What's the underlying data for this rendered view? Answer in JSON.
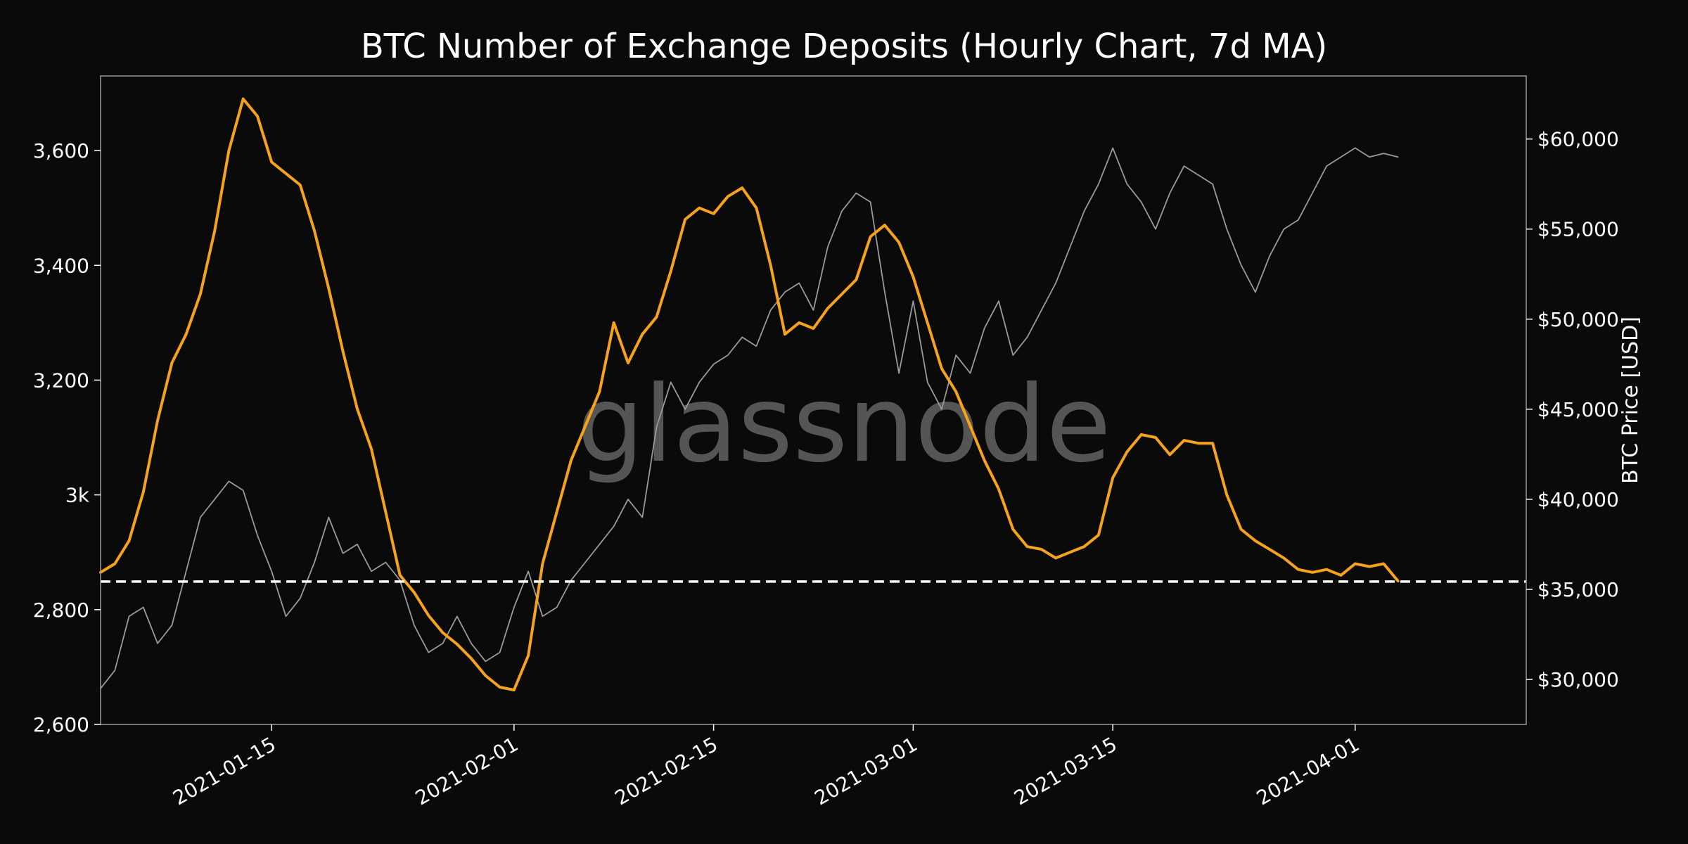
{
  "chart_data": {
    "type": "line",
    "title": "BTC Number of Exchange Deposits (Hourly Chart, 7d MA)",
    "watermark": "glassnode",
    "x_range": [
      "2021-01-03",
      "2021-04-13"
    ],
    "x_ticks": [
      "2021-01-15",
      "2021-02-01",
      "2021-02-15",
      "2021-03-01",
      "2021-03-15",
      "2021-04-01"
    ],
    "left_axis": {
      "range": [
        2600,
        3730
      ],
      "ticks": [
        {
          "value": 2600,
          "label": "2,600"
        },
        {
          "value": 2800,
          "label": "2,800"
        },
        {
          "value": 3000,
          "label": "3k"
        },
        {
          "value": 3200,
          "label": "3,200"
        },
        {
          "value": 3400,
          "label": "3,400"
        },
        {
          "value": 3600,
          "label": "3,600"
        }
      ]
    },
    "right_axis": {
      "label": "BTC Price [USD]",
      "range": [
        27500,
        63500
      ],
      "ticks": [
        {
          "value": 30000,
          "label": "$30,000"
        },
        {
          "value": 35000,
          "label": "$35,000"
        },
        {
          "value": 40000,
          "label": "$40,000"
        },
        {
          "value": 45000,
          "label": "$45,000"
        },
        {
          "value": 50000,
          "label": "$50,000"
        },
        {
          "value": 55000,
          "label": "$55,000"
        },
        {
          "value": 60000,
          "label": "$60,000"
        }
      ]
    },
    "reference_line": {
      "value": 2849,
      "style": "dashed",
      "color": "#ffffff"
    },
    "grid": false,
    "series": [
      {
        "axis": "left",
        "color": "#f7a21b",
        "points": [
          [
            "2021-01-03",
            2865
          ],
          [
            "2021-01-04",
            2880
          ],
          [
            "2021-01-05",
            2920
          ],
          [
            "2021-01-06",
            3005
          ],
          [
            "2021-01-07",
            3130
          ],
          [
            "2021-01-08",
            3230
          ],
          [
            "2021-01-09",
            3280
          ],
          [
            "2021-01-10",
            3350
          ],
          [
            "2021-01-11",
            3460
          ],
          [
            "2021-01-12",
            3600
          ],
          [
            "2021-01-13",
            3690
          ],
          [
            "2021-01-14",
            3660
          ],
          [
            "2021-01-15",
            3580
          ],
          [
            "2021-01-16",
            3560
          ],
          [
            "2021-01-17",
            3540
          ],
          [
            "2021-01-18",
            3460
          ],
          [
            "2021-01-19",
            3360
          ],
          [
            "2021-01-20",
            3250
          ],
          [
            "2021-01-21",
            3150
          ],
          [
            "2021-01-22",
            3080
          ],
          [
            "2021-01-23",
            2970
          ],
          [
            "2021-01-24",
            2860
          ],
          [
            "2021-01-25",
            2830
          ],
          [
            "2021-01-26",
            2790
          ],
          [
            "2021-01-27",
            2760
          ],
          [
            "2021-01-28",
            2740
          ],
          [
            "2021-01-29",
            2715
          ],
          [
            "2021-01-30",
            2685
          ],
          [
            "2021-01-31",
            2665
          ],
          [
            "2021-02-01",
            2660
          ],
          [
            "2021-02-02",
            2720
          ],
          [
            "2021-02-03",
            2880
          ],
          [
            "2021-02-04",
            2970
          ],
          [
            "2021-02-05",
            3060
          ],
          [
            "2021-02-06",
            3120
          ],
          [
            "2021-02-07",
            3180
          ],
          [
            "2021-02-08",
            3300
          ],
          [
            "2021-02-09",
            3230
          ],
          [
            "2021-02-10",
            3280
          ],
          [
            "2021-02-11",
            3310
          ],
          [
            "2021-02-12",
            3390
          ],
          [
            "2021-02-13",
            3480
          ],
          [
            "2021-02-14",
            3500
          ],
          [
            "2021-02-15",
            3490
          ],
          [
            "2021-02-16",
            3520
          ],
          [
            "2021-02-17",
            3535
          ],
          [
            "2021-02-18",
            3500
          ],
          [
            "2021-02-19",
            3400
          ],
          [
            "2021-02-20",
            3280
          ],
          [
            "2021-02-21",
            3300
          ],
          [
            "2021-02-22",
            3290
          ],
          [
            "2021-02-23",
            3325
          ],
          [
            "2021-02-24",
            3350
          ],
          [
            "2021-02-25",
            3375
          ],
          [
            "2021-02-26",
            3450
          ],
          [
            "2021-02-27",
            3470
          ],
          [
            "2021-02-28",
            3440
          ],
          [
            "2021-03-01",
            3380
          ],
          [
            "2021-03-02",
            3300
          ],
          [
            "2021-03-03",
            3220
          ],
          [
            "2021-03-04",
            3180
          ],
          [
            "2021-03-05",
            3120
          ],
          [
            "2021-03-06",
            3060
          ],
          [
            "2021-03-07",
            3010
          ],
          [
            "2021-03-08",
            2940
          ],
          [
            "2021-03-09",
            2910
          ],
          [
            "2021-03-10",
            2905
          ],
          [
            "2021-03-11",
            2890
          ],
          [
            "2021-03-12",
            2900
          ],
          [
            "2021-03-13",
            2910
          ],
          [
            "2021-03-14",
            2930
          ],
          [
            "2021-03-15",
            3030
          ],
          [
            "2021-03-16",
            3075
          ],
          [
            "2021-03-17",
            3105
          ],
          [
            "2021-03-18",
            3100
          ],
          [
            "2021-03-19",
            3070
          ],
          [
            "2021-03-20",
            3095
          ],
          [
            "2021-03-21",
            3090
          ],
          [
            "2021-03-22",
            3090
          ],
          [
            "2021-03-23",
            3000
          ],
          [
            "2021-03-24",
            2940
          ],
          [
            "2021-03-25",
            2920
          ],
          [
            "2021-03-26",
            2905
          ],
          [
            "2021-03-27",
            2890
          ],
          [
            "2021-03-28",
            2870
          ],
          [
            "2021-03-29",
            2865
          ],
          [
            "2021-03-30",
            2870
          ],
          [
            "2021-03-31",
            2860
          ],
          [
            "2021-04-01",
            2880
          ],
          [
            "2021-04-02",
            2875
          ],
          [
            "2021-04-03",
            2880
          ],
          [
            "2021-04-04",
            2850
          ]
        ]
      },
      {
        "axis": "right",
        "color": "#9a9a9a",
        "points": [
          [
            "2021-01-03",
            29500
          ],
          [
            "2021-01-04",
            30500
          ],
          [
            "2021-01-05",
            33500
          ],
          [
            "2021-01-06",
            34000
          ],
          [
            "2021-01-07",
            32000
          ],
          [
            "2021-01-08",
            33000
          ],
          [
            "2021-01-09",
            36000
          ],
          [
            "2021-01-10",
            39000
          ],
          [
            "2021-01-11",
            40000
          ],
          [
            "2021-01-12",
            41000
          ],
          [
            "2021-01-13",
            40500
          ],
          [
            "2021-01-14",
            38000
          ],
          [
            "2021-01-15",
            36000
          ],
          [
            "2021-01-16",
            33500
          ],
          [
            "2021-01-17",
            34500
          ],
          [
            "2021-01-18",
            36500
          ],
          [
            "2021-01-19",
            39000
          ],
          [
            "2021-01-20",
            37000
          ],
          [
            "2021-01-21",
            37500
          ],
          [
            "2021-01-22",
            36000
          ],
          [
            "2021-01-23",
            36500
          ],
          [
            "2021-01-24",
            35500
          ],
          [
            "2021-01-25",
            33000
          ],
          [
            "2021-01-26",
            31500
          ],
          [
            "2021-01-27",
            32000
          ],
          [
            "2021-01-28",
            33500
          ],
          [
            "2021-01-29",
            32000
          ],
          [
            "2021-01-30",
            31000
          ],
          [
            "2021-01-31",
            31500
          ],
          [
            "2021-02-01",
            34000
          ],
          [
            "2021-02-02",
            36000
          ],
          [
            "2021-02-03",
            33500
          ],
          [
            "2021-02-04",
            34000
          ],
          [
            "2021-02-05",
            35500
          ],
          [
            "2021-02-06",
            36500
          ],
          [
            "2021-02-07",
            37500
          ],
          [
            "2021-02-08",
            38500
          ],
          [
            "2021-02-09",
            40000
          ],
          [
            "2021-02-10",
            39000
          ],
          [
            "2021-02-11",
            44000
          ],
          [
            "2021-02-12",
            46500
          ],
          [
            "2021-02-13",
            45000
          ],
          [
            "2021-02-14",
            46500
          ],
          [
            "2021-02-15",
            47500
          ],
          [
            "2021-02-16",
            48000
          ],
          [
            "2021-02-17",
            49000
          ],
          [
            "2021-02-18",
            48500
          ],
          [
            "2021-02-19",
            50500
          ],
          [
            "2021-02-20",
            51500
          ],
          [
            "2021-02-21",
            52000
          ],
          [
            "2021-02-22",
            50500
          ],
          [
            "2021-02-23",
            54000
          ],
          [
            "2021-02-24",
            56000
          ],
          [
            "2021-02-25",
            57000
          ],
          [
            "2021-02-26",
            56500
          ],
          [
            "2021-02-27",
            51500
          ],
          [
            "2021-02-28",
            47000
          ],
          [
            "2021-03-01",
            51000
          ],
          [
            "2021-03-02",
            46500
          ],
          [
            "2021-03-03",
            45000
          ],
          [
            "2021-03-04",
            48000
          ],
          [
            "2021-03-05",
            47000
          ],
          [
            "2021-03-06",
            49500
          ],
          [
            "2021-03-07",
            51000
          ],
          [
            "2021-03-08",
            48000
          ],
          [
            "2021-03-09",
            49000
          ],
          [
            "2021-03-10",
            50500
          ],
          [
            "2021-03-11",
            52000
          ],
          [
            "2021-03-12",
            54000
          ],
          [
            "2021-03-13",
            56000
          ],
          [
            "2021-03-14",
            57500
          ],
          [
            "2021-03-15",
            59500
          ],
          [
            "2021-03-16",
            57500
          ],
          [
            "2021-03-17",
            56500
          ],
          [
            "2021-03-18",
            55000
          ],
          [
            "2021-03-19",
            57000
          ],
          [
            "2021-03-20",
            58500
          ],
          [
            "2021-03-21",
            58000
          ],
          [
            "2021-03-22",
            57500
          ],
          [
            "2021-03-23",
            55000
          ],
          [
            "2021-03-24",
            53000
          ],
          [
            "2021-03-25",
            51500
          ],
          [
            "2021-03-26",
            53500
          ],
          [
            "2021-03-27",
            55000
          ],
          [
            "2021-03-28",
            55500
          ],
          [
            "2021-03-29",
            57000
          ],
          [
            "2021-03-30",
            58500
          ],
          [
            "2021-03-31",
            59000
          ],
          [
            "2021-04-01",
            59500
          ],
          [
            "2021-04-02",
            59000
          ],
          [
            "2021-04-03",
            59200
          ],
          [
            "2021-04-04",
            59000
          ]
        ]
      }
    ]
  }
}
